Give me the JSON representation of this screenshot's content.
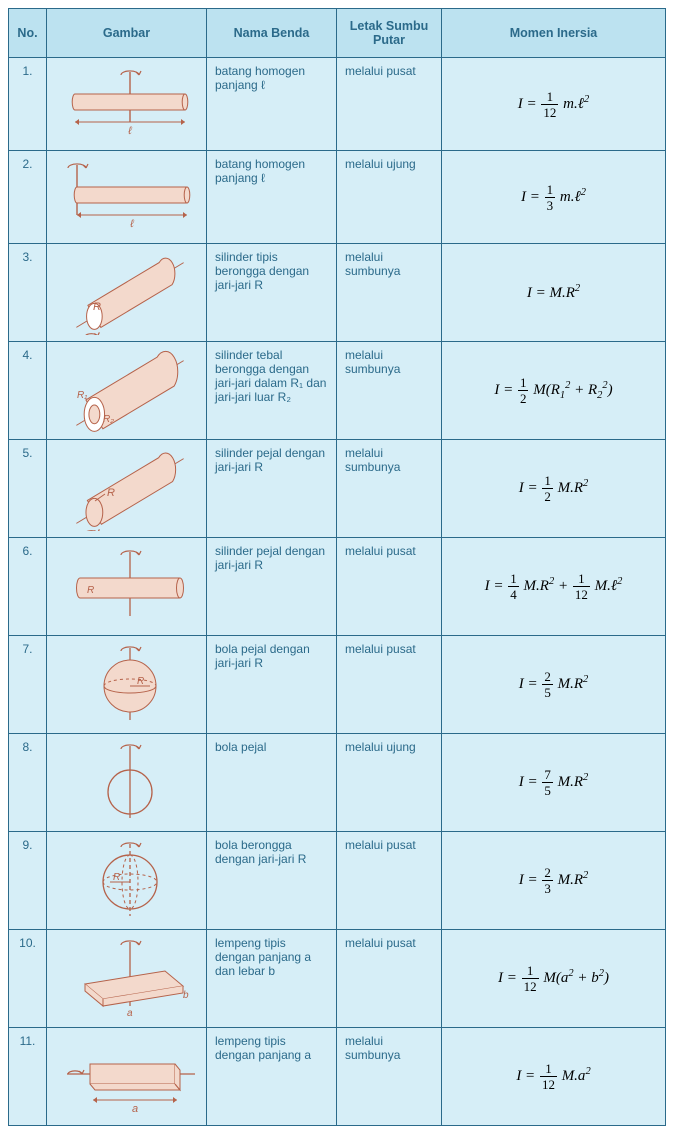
{
  "headers": {
    "no": "No.",
    "gambar": "Gambar",
    "nama": "Nama Benda",
    "letak": "Letak Sumbu Putar",
    "momen": "Momen Inersia"
  },
  "colors": {
    "header_bg": "#bce2f0",
    "cell_bg": "#d6eef7",
    "border": "#2b6a8a",
    "text": "#2b6a8a",
    "diagram_stroke": "#b5624a",
    "diagram_fill": "#f3d9cc"
  },
  "rows": [
    {
      "no": "1.",
      "nama": "batang homogen panjang ℓ",
      "letak": "melalui pusat",
      "formula_key": "f1",
      "svg": "rod_center"
    },
    {
      "no": "2.",
      "nama": "batang homogen panjang ℓ",
      "letak": "melalui ujung",
      "formula_key": "f2",
      "svg": "rod_end"
    },
    {
      "no": "3.",
      "nama": "silinder tipis berongga dengan jari-jari R",
      "letak": "melalui sumbunya",
      "formula_key": "f3",
      "svg": "cyl_thin"
    },
    {
      "no": "4.",
      "nama": "silinder tebal berongga dengan jari-jari dalam R₁ dan jari-jari luar R₂",
      "letak": "melalui sumbunya",
      "formula_key": "f4",
      "svg": "cyl_thick"
    },
    {
      "no": "5.",
      "nama": "silinder pejal dengan jari-jari R",
      "letak": "melalui sumbunya",
      "formula_key": "f5",
      "svg": "cyl_solid"
    },
    {
      "no": "6.",
      "nama": "silinder pejal dengan jari-jari R",
      "letak": "melalui pusat",
      "formula_key": "f6",
      "svg": "cyl_solid_perp"
    },
    {
      "no": "7.",
      "nama": "bola pejal dengan jari-jari R",
      "letak": "melalui pusat",
      "formula_key": "f7",
      "svg": "sphere_solid"
    },
    {
      "no": "8.",
      "nama": "bola pejal",
      "letak": "melalui ujung",
      "formula_key": "f8",
      "svg": "sphere_edge"
    },
    {
      "no": "9.",
      "nama": "bola berongga dengan jari-jari R",
      "letak": "melalui pusat",
      "formula_key": "f9",
      "svg": "sphere_hollow"
    },
    {
      "no": "10.",
      "nama": "lempeng tipis dengan panjang a dan lebar b",
      "letak": "melalui pusat",
      "formula_key": "f10",
      "svg": "plate_center"
    },
    {
      "no": "11.",
      "nama": "lempeng tipis dengan panjang a",
      "letak": "melalui sumbunya",
      "formula_key": "f11",
      "svg": "plate_axis"
    }
  ],
  "formulas_html": {
    "f1": "I = <span class='frac'><span class='n upright'>1</span><span class='d upright'>12</span></span> m.ℓ<sup>2</sup>",
    "f2": "I = <span class='frac'><span class='n upright'>1</span><span class='d upright'>3</span></span> m.ℓ<sup>2</sup>",
    "f3": "I = M.R<sup>2</sup>",
    "f4": "I = <span class='frac'><span class='n upright'>1</span><span class='d upright'>2</span></span> M(R<sub>1</sub><sup>2</sup> + R<sub>2</sub><sup>2</sup>)",
    "f5": "I = <span class='frac'><span class='n upright'>1</span><span class='d upright'>2</span></span> M.R<sup>2</sup>",
    "f6": "I = <span class='frac'><span class='n upright'>1</span><span class='d upright'>4</span></span> M.R<sup>2</sup> + <span class='frac'><span class='n upright'>1</span><span class='d upright'>12</span></span> M.ℓ<sup>2</sup>",
    "f7": "I = <span class='frac'><span class='n upright'>2</span><span class='d upright'>5</span></span> M.R<sup>2</sup>",
    "f8": "I = <span class='frac'><span class='n upright'>7</span><span class='d upright'>5</span></span> M.R<sup>2</sup>",
    "f9": "I = <span class='frac'><span class='n upright'>2</span><span class='d upright'>3</span></span> M.R<sup>2</sup>",
    "f10": "I = <span class='frac'><span class='n upright'>1</span><span class='d upright'>12</span></span> M(a<sup>2</sup> + b<sup>2</sup>)",
    "f11": "I = <span class='frac'><span class='n upright'>1</span><span class='d upright'>12</span></span> M.a<sup>2</sup>"
  },
  "diagram_labels": {
    "l": "ℓ",
    "R": "R",
    "R1": "R₁",
    "R2": "R₂",
    "a": "a",
    "b": "b"
  }
}
